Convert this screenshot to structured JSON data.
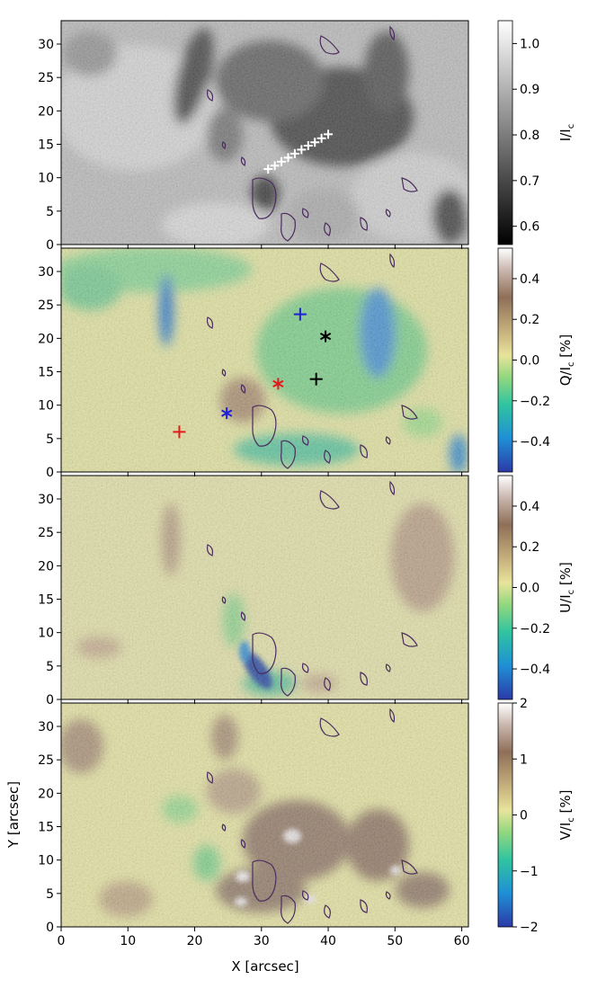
{
  "figure": {
    "xlabel": "X [arcsec]",
    "ylabel": "Y [arcsec]"
  },
  "chart_data": [
    {
      "type": "heatmap",
      "panel": "I/Ic intensity map",
      "colormap": "gray",
      "colorbar_label": "I/Ic",
      "colorbar_ticks": [
        "0.6",
        "0.7",
        "0.8",
        "0.9",
        "1.0"
      ],
      "colorbar_range": [
        0.56,
        1.05
      ],
      "xlim": [
        0,
        61
      ],
      "ylim": [
        0,
        33.5
      ],
      "xticks": [],
      "yticks": [
        "0",
        "5",
        "10",
        "15",
        "20",
        "25",
        "30"
      ],
      "markers": [
        {
          "symbol": "+",
          "color": "#ffffff",
          "x": 31.0,
          "y": 11.3
        },
        {
          "symbol": "+",
          "color": "#ffffff",
          "x": 32.0,
          "y": 11.8
        },
        {
          "symbol": "+",
          "color": "#ffffff",
          "x": 33.0,
          "y": 12.4
        },
        {
          "symbol": "+",
          "color": "#ffffff",
          "x": 34.0,
          "y": 13.0
        },
        {
          "symbol": "+",
          "color": "#ffffff",
          "x": 35.0,
          "y": 13.6
        },
        {
          "symbol": "+",
          "color": "#ffffff",
          "x": 36.0,
          "y": 14.2
        },
        {
          "symbol": "+",
          "color": "#ffffff",
          "x": 37.0,
          "y": 14.8
        },
        {
          "symbol": "+",
          "color": "#ffffff",
          "x": 38.0,
          "y": 15.3
        },
        {
          "symbol": "+",
          "color": "#ffffff",
          "x": 39.0,
          "y": 15.9
        },
        {
          "symbol": "+",
          "color": "#ffffff",
          "x": 40.0,
          "y": 16.5
        }
      ]
    },
    {
      "type": "heatmap",
      "panel": "Q/Ic linear polarization map",
      "colormap": "terrain",
      "colorbar_label": "Q/Ic [%]",
      "colorbar_ticks": [
        "−0.4",
        "−0.2",
        "0.0",
        "0.2",
        "0.4"
      ],
      "colorbar_range": [
        -0.55,
        0.55
      ],
      "xlim": [
        0,
        61
      ],
      "ylim": [
        0,
        33.5
      ],
      "xticks": [],
      "yticks": [
        "0",
        "5",
        "10",
        "15",
        "20",
        "25",
        "30"
      ],
      "markers": [
        {
          "symbol": "+",
          "color": "#e31a1c",
          "x": 17.7,
          "y": 6.0
        },
        {
          "symbol": "*",
          "color": "#1f1fd6",
          "x": 24.8,
          "y": 8.8
        },
        {
          "symbol": "*",
          "color": "#e31a1c",
          "x": 32.5,
          "y": 13.2
        },
        {
          "symbol": "+",
          "color": "#000000",
          "x": 38.2,
          "y": 13.9
        },
        {
          "symbol": "+",
          "color": "#1f1fd6",
          "x": 35.8,
          "y": 23.6
        },
        {
          "symbol": "*",
          "color": "#000000",
          "x": 39.6,
          "y": 20.3
        }
      ]
    },
    {
      "type": "heatmap",
      "panel": "U/Ic linear polarization map",
      "colormap": "terrain",
      "colorbar_label": "U/Ic [%]",
      "colorbar_ticks": [
        "−0.4",
        "−0.2",
        "0.0",
        "0.2",
        "0.4"
      ],
      "colorbar_range": [
        -0.55,
        0.55
      ],
      "xlim": [
        0,
        61
      ],
      "ylim": [
        0,
        33.5
      ],
      "xticks": [],
      "yticks": [
        "0",
        "5",
        "10",
        "15",
        "20",
        "25",
        "30"
      ],
      "markers": []
    },
    {
      "type": "heatmap",
      "panel": "V/Ic circular polarization map",
      "colormap": "terrain",
      "colorbar_label": "V/Ic [%]",
      "colorbar_ticks": [
        "−2",
        "−1",
        "0",
        "1",
        "2"
      ],
      "colorbar_range": [
        -2,
        2
      ],
      "xlim": [
        0,
        61
      ],
      "ylim": [
        0,
        33.5
      ],
      "xticks": [
        "0",
        "10",
        "20",
        "30",
        "40",
        "50",
        "60"
      ],
      "yticks": [
        "0",
        "5",
        "10",
        "15",
        "20",
        "25",
        "30"
      ],
      "markers": []
    }
  ]
}
